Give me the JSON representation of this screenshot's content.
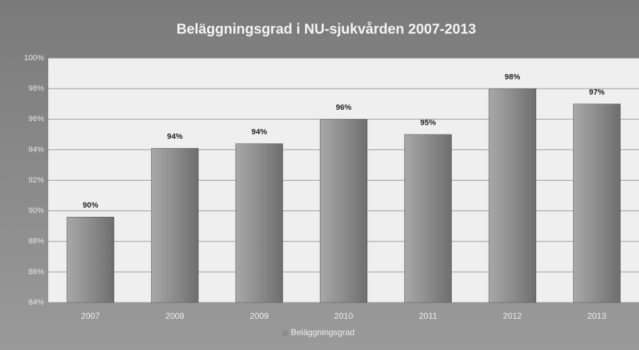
{
  "chart_data": {
    "type": "bar",
    "title": "Beläggningsgrad i NU-sjukvården 2007-2013",
    "categories": [
      "2007",
      "2008",
      "2009",
      "2010",
      "2011",
      "2012",
      "2013"
    ],
    "series": [
      {
        "name": "Beläggningsgrad",
        "color": "#8c8c8c",
        "values": [
          89.6,
          94.1,
          94.4,
          96.0,
          95.0,
          98.0,
          97.0
        ],
        "value_labels": [
          "90%",
          "94%",
          "94%",
          "96%",
          "95%",
          "98%",
          "97%"
        ]
      }
    ],
    "ylim": [
      84,
      100
    ],
    "yticks": [
      {
        "value": 84,
        "label": "84%"
      },
      {
        "value": 86,
        "label": "86%"
      },
      {
        "value": 88,
        "label": "88%"
      },
      {
        "value": 90,
        "label": "90%"
      },
      {
        "value": 92,
        "label": "92%"
      },
      {
        "value": 94,
        "label": "94%"
      },
      {
        "value": 96,
        "label": "96%"
      },
      {
        "value": 98,
        "label": "98%"
      },
      {
        "value": 100,
        "label": "100%"
      }
    ],
    "grid": true,
    "legend": "bottom"
  }
}
